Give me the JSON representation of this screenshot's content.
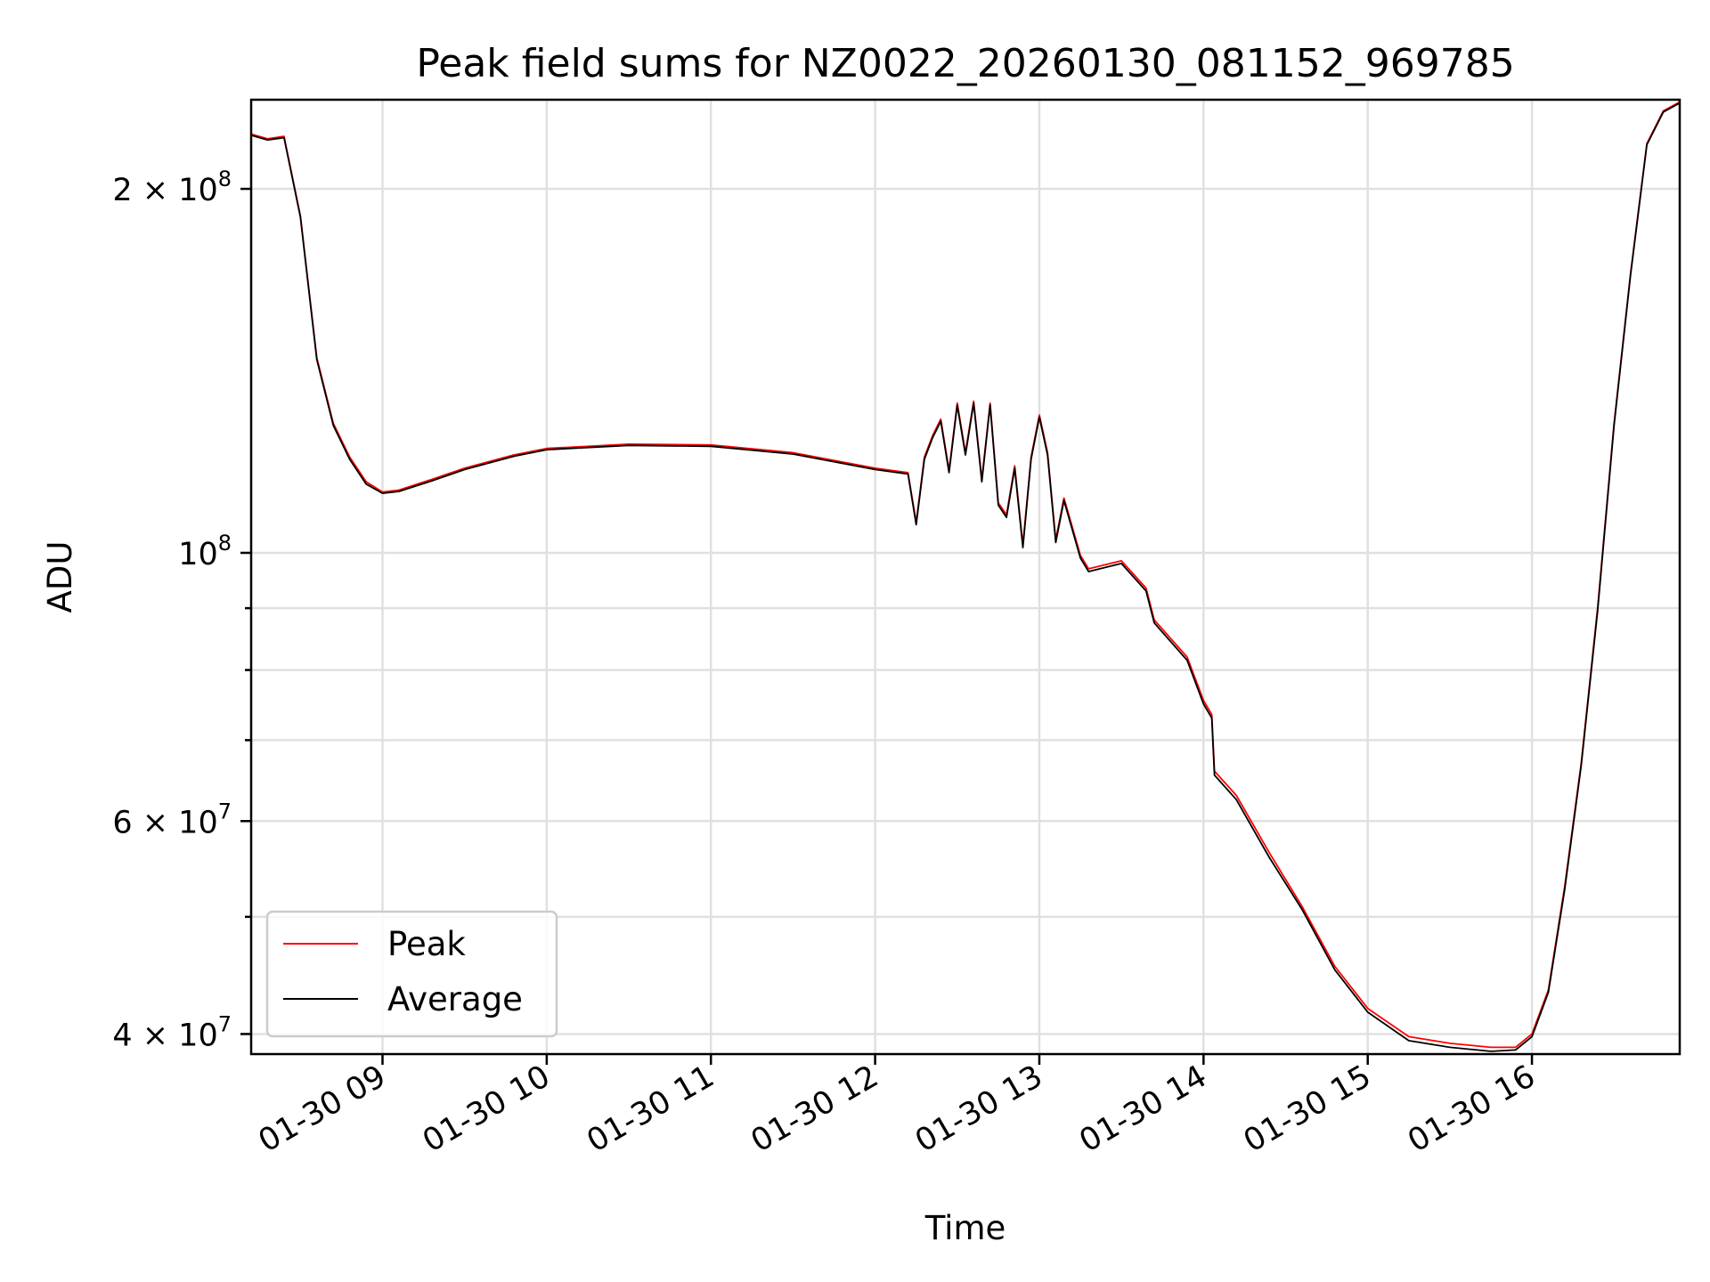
{
  "chart_data": {
    "type": "line",
    "title": "Peak field sums for NZ0022_20260130_081152_969785",
    "xlabel": "Time",
    "ylabel": "ADU",
    "y_scale": "log",
    "grid": true,
    "legend_position": "lower-left",
    "xlim": [
      "2026-01-30 08:12",
      "2026-01-30 16:54"
    ],
    "ylim": [
      38500000,
      237000000
    ],
    "x_ticks": [
      {
        "value": "2026-01-30 09:00",
        "label": "01-30 09"
      },
      {
        "value": "2026-01-30 10:00",
        "label": "01-30 10"
      },
      {
        "value": "2026-01-30 11:00",
        "label": "01-30 11"
      },
      {
        "value": "2026-01-30 12:00",
        "label": "01-30 12"
      },
      {
        "value": "2026-01-30 13:00",
        "label": "01-30 13"
      },
      {
        "value": "2026-01-30 14:00",
        "label": "01-30 14"
      },
      {
        "value": "2026-01-30 15:00",
        "label": "01-30 15"
      },
      {
        "value": "2026-01-30 16:00",
        "label": "01-30 16"
      }
    ],
    "y_major_ticks": [
      {
        "value": 40000000,
        "mantissa": "4",
        "exponent": "7"
      },
      {
        "value": 60000000,
        "mantissa": "6",
        "exponent": "7"
      },
      {
        "value": 100000000,
        "mantissa": "",
        "exponent": "8"
      },
      {
        "value": 200000000,
        "mantissa": "2",
        "exponent": "8"
      }
    ],
    "y_minor_ticks": [
      50000000,
      70000000,
      80000000,
      90000000
    ],
    "x": [
      "2026-01-30 08:12",
      "2026-01-30 08:18",
      "2026-01-30 08:24",
      "2026-01-30 08:30",
      "2026-01-30 08:36",
      "2026-01-30 08:42",
      "2026-01-30 08:48",
      "2026-01-30 08:54",
      "2026-01-30 09:00",
      "2026-01-30 09:06",
      "2026-01-30 09:18",
      "2026-01-30 09:30",
      "2026-01-30 09:48",
      "2026-01-30 10:00",
      "2026-01-30 10:30",
      "2026-01-30 11:00",
      "2026-01-30 11:30",
      "2026-01-30 12:00",
      "2026-01-30 12:12",
      "2026-01-30 12:15",
      "2026-01-30 12:18",
      "2026-01-30 12:21",
      "2026-01-30 12:24",
      "2026-01-30 12:27",
      "2026-01-30 12:30",
      "2026-01-30 12:33",
      "2026-01-30 12:36",
      "2026-01-30 12:39",
      "2026-01-30 12:42",
      "2026-01-30 12:45",
      "2026-01-30 12:48",
      "2026-01-30 12:51",
      "2026-01-30 12:54",
      "2026-01-30 12:57",
      "2026-01-30 13:00",
      "2026-01-30 13:03",
      "2026-01-30 13:06",
      "2026-01-30 13:09",
      "2026-01-30 13:15",
      "2026-01-30 13:18",
      "2026-01-30 13:30",
      "2026-01-30 13:39",
      "2026-01-30 13:42",
      "2026-01-30 13:54",
      "2026-01-30 14:00",
      "2026-01-30 14:03",
      "2026-01-30 14:04",
      "2026-01-30 14:12",
      "2026-01-30 14:24",
      "2026-01-30 14:36",
      "2026-01-30 14:48",
      "2026-01-30 15:00",
      "2026-01-30 15:15",
      "2026-01-30 15:30",
      "2026-01-30 15:45",
      "2026-01-30 15:54",
      "2026-01-30 16:00",
      "2026-01-30 16:06",
      "2026-01-30 16:12",
      "2026-01-30 16:18",
      "2026-01-30 16:24",
      "2026-01-30 16:30",
      "2026-01-30 16:36",
      "2026-01-30 16:42",
      "2026-01-30 16:48",
      "2026-01-30 16:54"
    ],
    "series": [
      {
        "name": "Peak",
        "color": "#ff0000",
        "values": [
          222000000,
          220000000,
          221000000,
          190000000,
          145000000,
          128000000,
          120000000,
          114500000,
          112300000,
          112700000,
          115000000,
          117500000,
          120500000,
          122000000,
          123000000,
          122800000,
          121000000,
          117500000,
          116500000,
          106000000,
          120000000,
          125000000,
          129000000,
          117000000,
          133000000,
          121000000,
          133500000,
          115000000,
          133000000,
          110000000,
          107500000,
          118000000,
          101500000,
          120000000,
          130000000,
          121000000,
          102500000,
          111000000,
          99500000,
          97000000,
          98500000,
          93500000,
          88000000,
          82000000,
          75500000,
          73500000,
          66000000,
          63000000,
          56500000,
          51000000,
          45500000,
          42000000,
          39800000,
          39300000,
          39000000,
          39000000,
          40000000,
          43500000,
          53000000,
          67000000,
          90000000,
          128000000,
          170000000,
          218000000,
          232000000,
          236000000
        ]
      },
      {
        "name": "Average",
        "color": "#000000",
        "values": [
          221500000,
          219500000,
          220500000,
          189500000,
          144500000,
          127500000,
          119500000,
          114000000,
          112000000,
          112400000,
          114700000,
          117200000,
          120200000,
          121700000,
          122700000,
          122500000,
          120700000,
          117200000,
          116200000,
          105500000,
          119500000,
          124500000,
          128500000,
          116500000,
          132500000,
          120500000,
          133000000,
          114500000,
          132500000,
          109500000,
          107000000,
          117500000,
          101000000,
          119500000,
          129500000,
          120500000,
          102000000,
          110500000,
          99000000,
          96500000,
          98000000,
          93000000,
          87500000,
          81500000,
          75000000,
          73000000,
          65500000,
          62500000,
          56000000,
          50700000,
          45200000,
          41700000,
          39500000,
          39000000,
          38700000,
          38800000,
          39800000,
          43300000,
          52700000,
          66700000,
          89500000,
          127500000,
          169500000,
          217500000,
          231500000,
          235500000
        ]
      }
    ]
  }
}
